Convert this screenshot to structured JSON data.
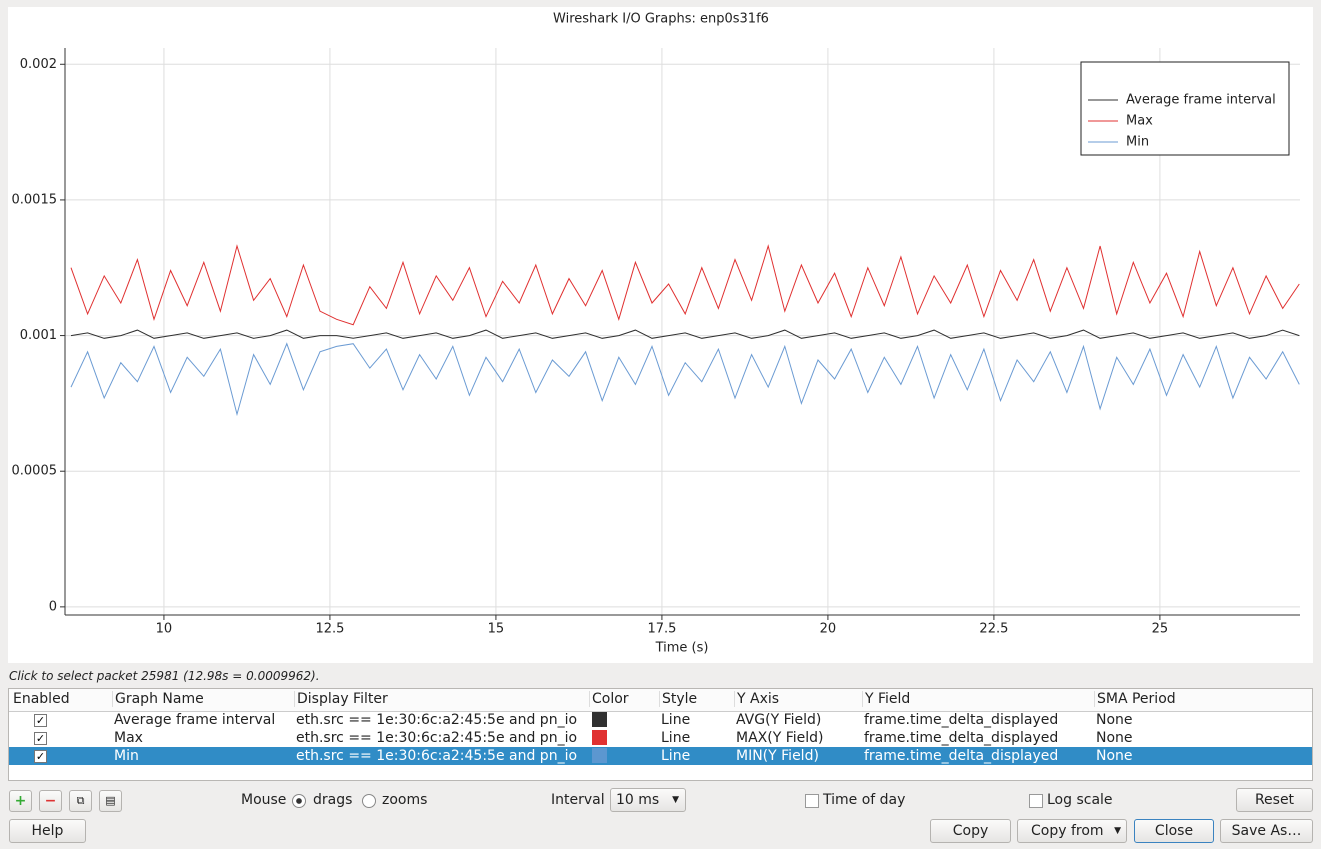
{
  "chart_data": {
    "type": "line",
    "title": "Wireshark I/O Graphs: enp0s31f6",
    "x_label": "Time (s)",
    "x": [
      8.6,
      8.85,
      9.1,
      9.35,
      9.6,
      9.85,
      10.1,
      10.35,
      10.6,
      10.85,
      11.1,
      11.35,
      11.6,
      11.85,
      12.1,
      12.35,
      12.6,
      12.85,
      13.1,
      13.35,
      13.6,
      13.85,
      14.1,
      14.35,
      14.6,
      14.85,
      15.1,
      15.35,
      15.6,
      15.85,
      16.1,
      16.35,
      16.6,
      16.85,
      17.1,
      17.35,
      17.6,
      17.85,
      18.1,
      18.35,
      18.6,
      18.85,
      19.1,
      19.35,
      19.6,
      19.85,
      20.1,
      20.35,
      20.6,
      20.85,
      21.1,
      21.35,
      21.6,
      21.85,
      22.1,
      22.35,
      22.6,
      22.85,
      23.1,
      23.35,
      23.6,
      23.85,
      24.1,
      24.35,
      24.6,
      24.85,
      25.1,
      25.35,
      25.6,
      25.85,
      26.1,
      26.35,
      26.6,
      26.85,
      27.1
    ],
    "series": [
      {
        "name": "Average frame interval",
        "color": "#303030",
        "values": [
          0.001,
          0.00101,
          0.00099,
          0.001,
          0.00102,
          0.00099,
          0.001,
          0.00101,
          0.00099,
          0.001,
          0.00101,
          0.00099,
          0.001,
          0.00102,
          0.00099,
          0.001,
          0.001,
          0.00099,
          0.001,
          0.00101,
          0.00099,
          0.001,
          0.00101,
          0.00099,
          0.001,
          0.00102,
          0.00099,
          0.001,
          0.00101,
          0.00099,
          0.001,
          0.00101,
          0.00099,
          0.001,
          0.00102,
          0.00099,
          0.001,
          0.00101,
          0.00099,
          0.001,
          0.00101,
          0.00099,
          0.001,
          0.00102,
          0.00099,
          0.001,
          0.00101,
          0.00099,
          0.001,
          0.00101,
          0.00099,
          0.001,
          0.00102,
          0.00099,
          0.001,
          0.00101,
          0.00099,
          0.001,
          0.00101,
          0.00099,
          0.001,
          0.00102,
          0.00099,
          0.001,
          0.00101,
          0.00099,
          0.001,
          0.00101,
          0.00099,
          0.001,
          0.00101,
          0.00099,
          0.001,
          0.00102,
          0.001
        ]
      },
      {
        "name": "Max",
        "color": "#e03131",
        "values": [
          0.00125,
          0.00108,
          0.00122,
          0.00112,
          0.00128,
          0.00106,
          0.00124,
          0.00111,
          0.00127,
          0.00109,
          0.00133,
          0.00113,
          0.00121,
          0.00107,
          0.00126,
          0.00109,
          0.00106,
          0.00104,
          0.00118,
          0.0011,
          0.00127,
          0.00108,
          0.00122,
          0.00113,
          0.00125,
          0.00107,
          0.0012,
          0.00112,
          0.00126,
          0.00108,
          0.00121,
          0.00111,
          0.00124,
          0.00106,
          0.00127,
          0.00112,
          0.00119,
          0.00108,
          0.00125,
          0.0011,
          0.00128,
          0.00113,
          0.00133,
          0.00109,
          0.00126,
          0.00112,
          0.00123,
          0.00107,
          0.00125,
          0.00111,
          0.00129,
          0.00108,
          0.00122,
          0.00112,
          0.00126,
          0.00107,
          0.00124,
          0.00113,
          0.00128,
          0.00109,
          0.00125,
          0.0011,
          0.00133,
          0.00108,
          0.00127,
          0.00112,
          0.00123,
          0.00107,
          0.00131,
          0.00111,
          0.00125,
          0.00108,
          0.00122,
          0.0011,
          0.00119
        ]
      },
      {
        "name": "Min",
        "color": "#6b9bd3",
        "values": [
          0.00081,
          0.00094,
          0.00077,
          0.0009,
          0.00083,
          0.00096,
          0.00079,
          0.00092,
          0.00085,
          0.00095,
          0.00071,
          0.00093,
          0.00082,
          0.00097,
          0.0008,
          0.00094,
          0.00096,
          0.00097,
          0.00088,
          0.00095,
          0.0008,
          0.00093,
          0.00084,
          0.00096,
          0.00078,
          0.00092,
          0.00083,
          0.00095,
          0.00079,
          0.00091,
          0.00085,
          0.00094,
          0.00076,
          0.00092,
          0.00082,
          0.00096,
          0.00078,
          0.0009,
          0.00083,
          0.00095,
          0.00077,
          0.00093,
          0.00081,
          0.00096,
          0.00075,
          0.00091,
          0.00084,
          0.00095,
          0.00079,
          0.00092,
          0.00082,
          0.00096,
          0.00077,
          0.00093,
          0.0008,
          0.00095,
          0.00076,
          0.00091,
          0.00083,
          0.00094,
          0.00079,
          0.00096,
          0.00073,
          0.00092,
          0.00082,
          0.00095,
          0.00078,
          0.00093,
          0.00081,
          0.00096,
          0.00077,
          0.00092,
          0.00084,
          0.00094,
          0.00082
        ]
      }
    ],
    "xlim": [
      8.51,
      27.11
    ],
    "xticks": [
      10,
      12.5,
      15,
      17.5,
      20,
      22.5,
      25
    ],
    "ylim": [
      -3e-05,
      0.00206
    ],
    "yticks": [
      0,
      0.0005,
      0.001,
      0.0015,
      0.002
    ],
    "grid": true,
    "legend": "upper right"
  },
  "ui": {
    "status": "Click to select packet 25981 (12.98s = 0.0009962).",
    "table": {
      "headers": [
        "Enabled",
        "Graph Name",
        "Display Filter",
        "Color",
        "Style",
        "Y Axis",
        "Y Field",
        "SMA Period"
      ],
      "rows": [
        [
          "Average frame interval",
          "eth.src == 1e:30:6c:a2:45:5e and pn_io",
          "Line",
          "AVG(Y Field)",
          "frame.time_delta_displayed",
          "None"
        ],
        [
          "Max",
          "eth.src == 1e:30:6c:a2:45:5e and pn_io",
          "Line",
          "MAX(Y Field)",
          "frame.time_delta_displayed",
          "None"
        ],
        [
          "Min",
          "eth.src == 1e:30:6c:a2:45:5e and pn_io",
          "Line",
          "MIN(Y Field)",
          "frame.time_delta_displayed",
          "None"
        ]
      ]
    },
    "controls": {
      "mouse": "Mouse",
      "drags": "drags",
      "zooms": "zooms",
      "interval": "Interval",
      "interval_value": "10 ms",
      "time_of_day": "Time of day",
      "log_scale": "Log scale",
      "reset": "Reset",
      "help": "Help",
      "copy": "Copy",
      "copy_from": "Copy from",
      "close": "Close",
      "save_as": "Save As…"
    }
  }
}
